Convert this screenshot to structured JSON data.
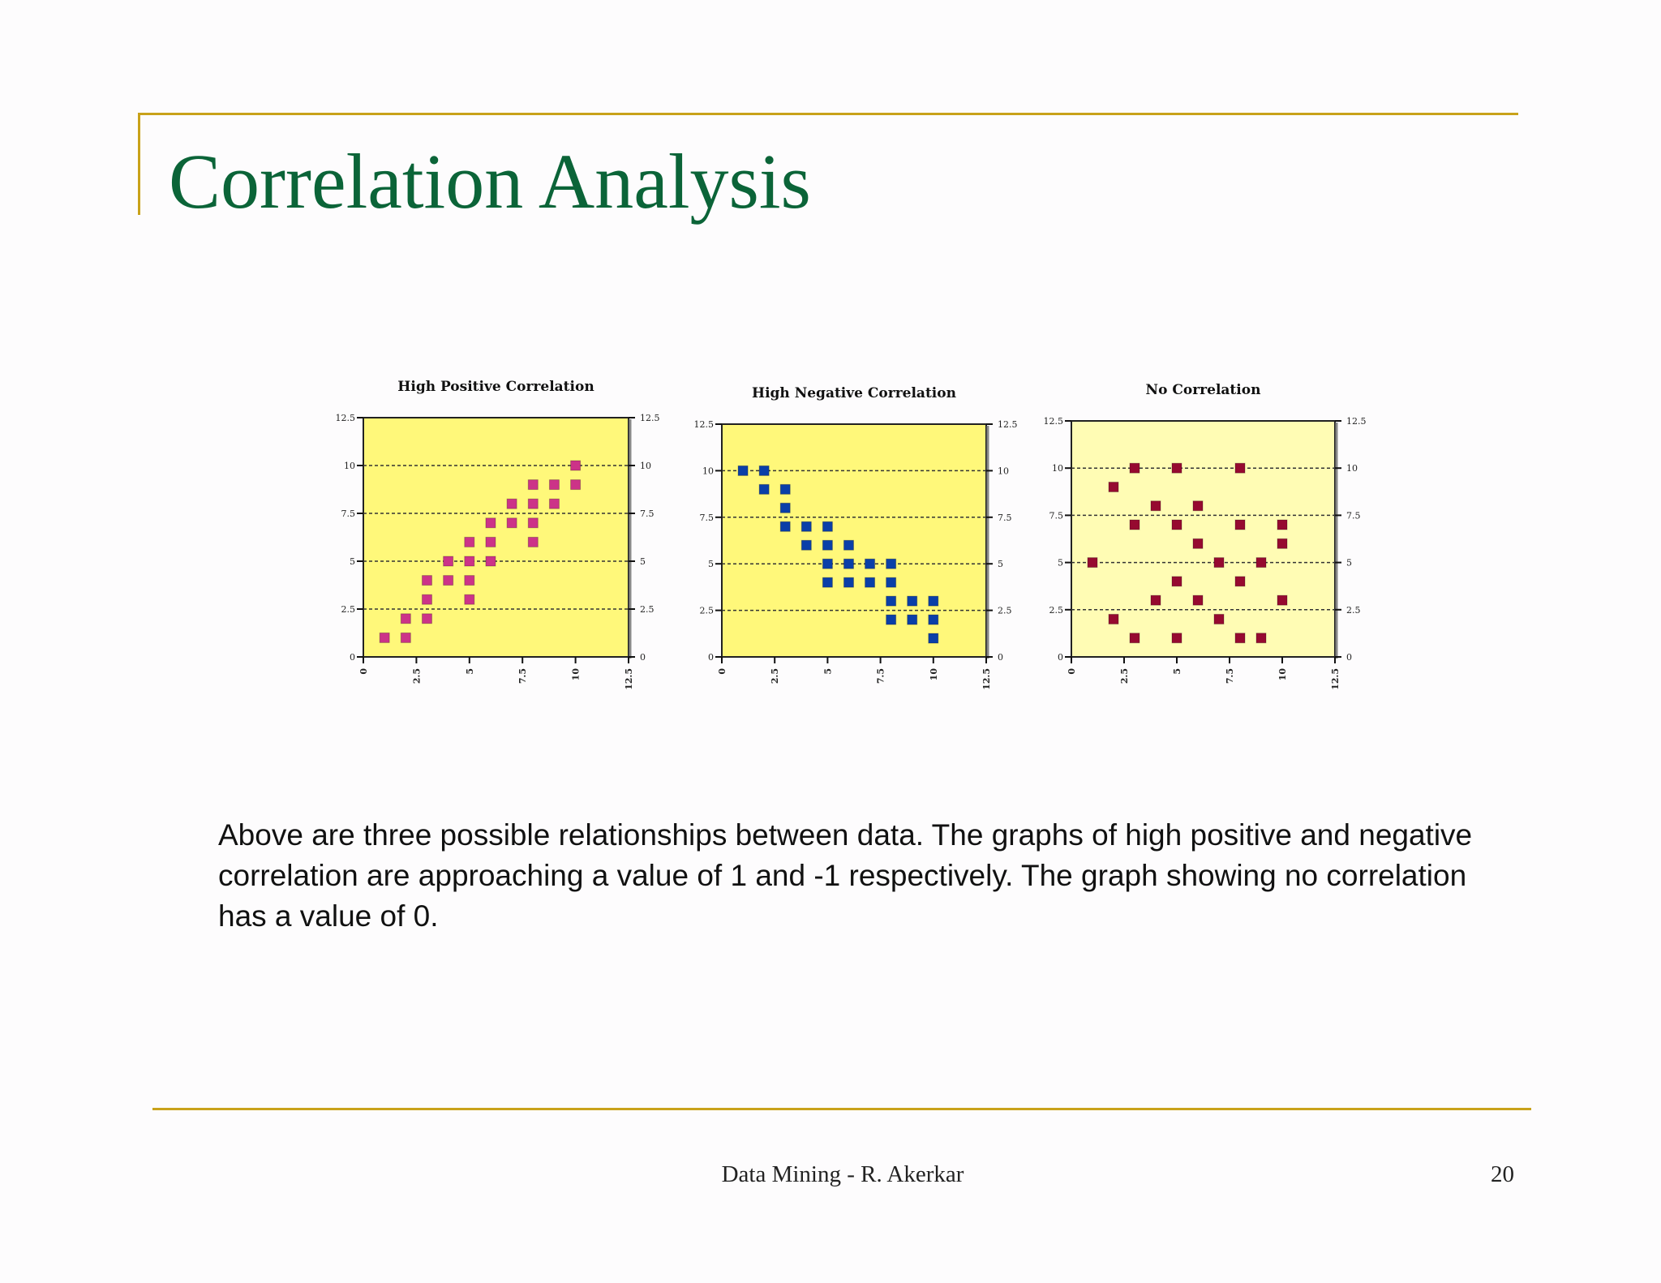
{
  "slide": {
    "title": "Correlation Analysis",
    "body": "Above are three possible relationships between data. The graphs of high positive and negative correlation are approaching a value of 1 and -1 respectively. The graph showing no correlation has a value of 0.",
    "footer": "Data Mining - R. Akerkar",
    "page_number": "20"
  },
  "chart_data": [
    {
      "type": "scatter",
      "title": "High Positive Correlation",
      "xlim": [
        0,
        12.5
      ],
      "ylim": [
        0,
        12.5
      ],
      "xticks": [
        "0",
        "2.5",
        "5",
        "7.5",
        "10",
        "12.5"
      ],
      "yticks": [
        "0",
        "2.5",
        "5",
        "7.5",
        "10",
        "12.5"
      ],
      "grid": "horizontal dotted",
      "marker_color": "#cc3388",
      "background": "#fff87a",
      "points": [
        [
          1,
          1
        ],
        [
          2,
          1
        ],
        [
          2,
          2
        ],
        [
          3,
          2
        ],
        [
          3,
          3
        ],
        [
          3,
          4
        ],
        [
          4,
          4
        ],
        [
          4,
          5
        ],
        [
          5,
          3
        ],
        [
          5,
          4
        ],
        [
          5,
          5
        ],
        [
          5,
          6
        ],
        [
          6,
          5
        ],
        [
          6,
          6
        ],
        [
          6,
          7
        ],
        [
          7,
          7
        ],
        [
          7,
          8
        ],
        [
          8,
          6
        ],
        [
          8,
          7
        ],
        [
          8,
          8
        ],
        [
          8,
          9
        ],
        [
          9,
          8
        ],
        [
          9,
          9
        ],
        [
          10,
          9
        ],
        [
          10,
          10
        ]
      ]
    },
    {
      "type": "scatter",
      "title": "High Negative Correlation",
      "xlim": [
        0,
        12.5
      ],
      "ylim": [
        0,
        12.5
      ],
      "xticks": [
        "0",
        "2.5",
        "5",
        "7.5",
        "10",
        "12.5"
      ],
      "yticks": [
        "0",
        "2.5",
        "5",
        "7.5",
        "10",
        "12.5"
      ],
      "grid": "horizontal dotted",
      "marker_color": "#0a3fa8",
      "background": "#fff87a",
      "points": [
        [
          1,
          10
        ],
        [
          2,
          10
        ],
        [
          2,
          9
        ],
        [
          3,
          9
        ],
        [
          3,
          8
        ],
        [
          3,
          7
        ],
        [
          4,
          7
        ],
        [
          4,
          6
        ],
        [
          5,
          7
        ],
        [
          5,
          6
        ],
        [
          5,
          5
        ],
        [
          5,
          4
        ],
        [
          6,
          6
        ],
        [
          6,
          5
        ],
        [
          6,
          4
        ],
        [
          7,
          5
        ],
        [
          7,
          4
        ],
        [
          8,
          5
        ],
        [
          8,
          4
        ],
        [
          8,
          3
        ],
        [
          8,
          2
        ],
        [
          9,
          3
        ],
        [
          9,
          2
        ],
        [
          10,
          3
        ],
        [
          10,
          2
        ],
        [
          10,
          1
        ]
      ]
    },
    {
      "type": "scatter",
      "title": "No Correlation",
      "xlim": [
        0,
        12.5
      ],
      "ylim": [
        0,
        12.5
      ],
      "xticks": [
        "0",
        "2.5",
        "5",
        "7.5",
        "10",
        "12.5"
      ],
      "yticks": [
        "0",
        "2.5",
        "5",
        "7.5",
        "10",
        "12.5"
      ],
      "grid": "horizontal dotted",
      "marker_color": "#960a30",
      "background": "#fffcb4",
      "points": [
        [
          3,
          10
        ],
        [
          5,
          10
        ],
        [
          8,
          10
        ],
        [
          2,
          9
        ],
        [
          4,
          8
        ],
        [
          6,
          8
        ],
        [
          3,
          7
        ],
        [
          5,
          7
        ],
        [
          8,
          7
        ],
        [
          10,
          7
        ],
        [
          6,
          6
        ],
        [
          10,
          6
        ],
        [
          1,
          5
        ],
        [
          7,
          5
        ],
        [
          9,
          5
        ],
        [
          5,
          4
        ],
        [
          8,
          4
        ],
        [
          4,
          3
        ],
        [
          6,
          3
        ],
        [
          10,
          3
        ],
        [
          2,
          2
        ],
        [
          7,
          2
        ],
        [
          3,
          1
        ],
        [
          5,
          1
        ],
        [
          8,
          1
        ],
        [
          9,
          1
        ]
      ]
    }
  ]
}
